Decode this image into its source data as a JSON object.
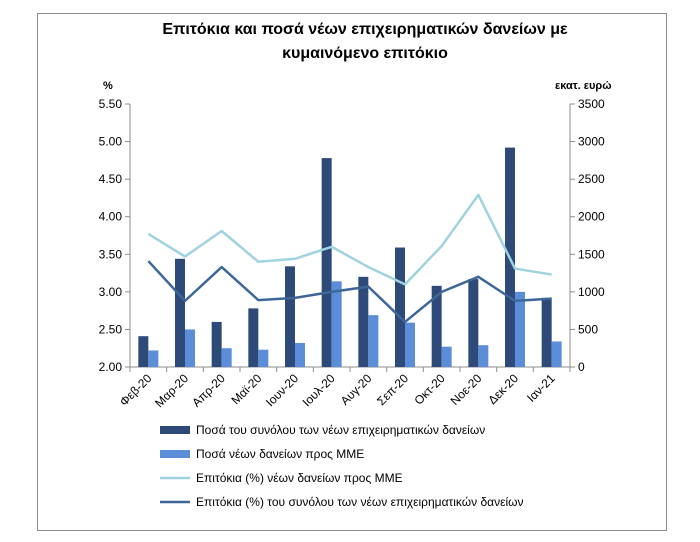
{
  "chart_data": {
    "type": "bar",
    "title_lines": [
      "Επιτόκια και ποσά νέων επιχειρηματικών δανείων με",
      "κυμαινόμενο επιτόκιο"
    ],
    "y_left_label": "%",
    "y_right_label": "εκατ. ευρώ",
    "y_left_lim": [
      2.0,
      5.5
    ],
    "y_left_ticks": [
      "2.00",
      "2.50",
      "3.00",
      "3.50",
      "4.00",
      "4.50",
      "5.00",
      "5.50"
    ],
    "y_right_lim": [
      0,
      3500
    ],
    "y_right_ticks": [
      "0",
      "500",
      "1000",
      "1500",
      "2000",
      "2500",
      "3000",
      "3500"
    ],
    "categories": [
      "Φεβ-20",
      "Μαρ-20",
      "Απρ-20",
      "Μαϊ-20",
      "Ιουν-20",
      "Ιουλ-20",
      "Αυγ-20",
      "Σεπ-20",
      "Οκτ-20",
      "Νοε-20",
      "Δεκ-20",
      "Ιαν-21"
    ],
    "series": [
      {
        "name": "Ποσά του συνόλου των νέων επιχειρηματικών δανείων",
        "type": "bar",
        "axis": "right",
        "color": "#2E4A78",
        "values": [
          410,
          1440,
          600,
          780,
          1340,
          2780,
          1200,
          1590,
          1080,
          1170,
          2920,
          920
        ]
      },
      {
        "name": "Ποσά νέων δανείων προς ΜΜΕ",
        "type": "bar",
        "axis": "right",
        "color": "#5B8DD8",
        "values": [
          220,
          500,
          250,
          230,
          320,
          1140,
          690,
          590,
          270,
          290,
          1000,
          340
        ]
      },
      {
        "name": "Επιτόκια (%) νέων δανείων προς ΜΜΕ",
        "type": "line",
        "axis": "left",
        "color": "#9FD3DF",
        "values": [
          3.77,
          3.47,
          3.81,
          3.4,
          3.44,
          3.6,
          3.33,
          3.1,
          3.61,
          4.29,
          3.31,
          3.23
        ]
      },
      {
        "name": "Επιτόκια (%) του συνόλου των νέων επιχειρηματικών δανείων",
        "type": "line",
        "axis": "left",
        "color": "#3D6798",
        "values": [
          3.41,
          2.88,
          3.33,
          2.89,
          2.92,
          3.0,
          3.07,
          2.6,
          3.0,
          3.2,
          2.88,
          2.91
        ]
      }
    ],
    "legend_position": "bottom",
    "grid": false
  }
}
